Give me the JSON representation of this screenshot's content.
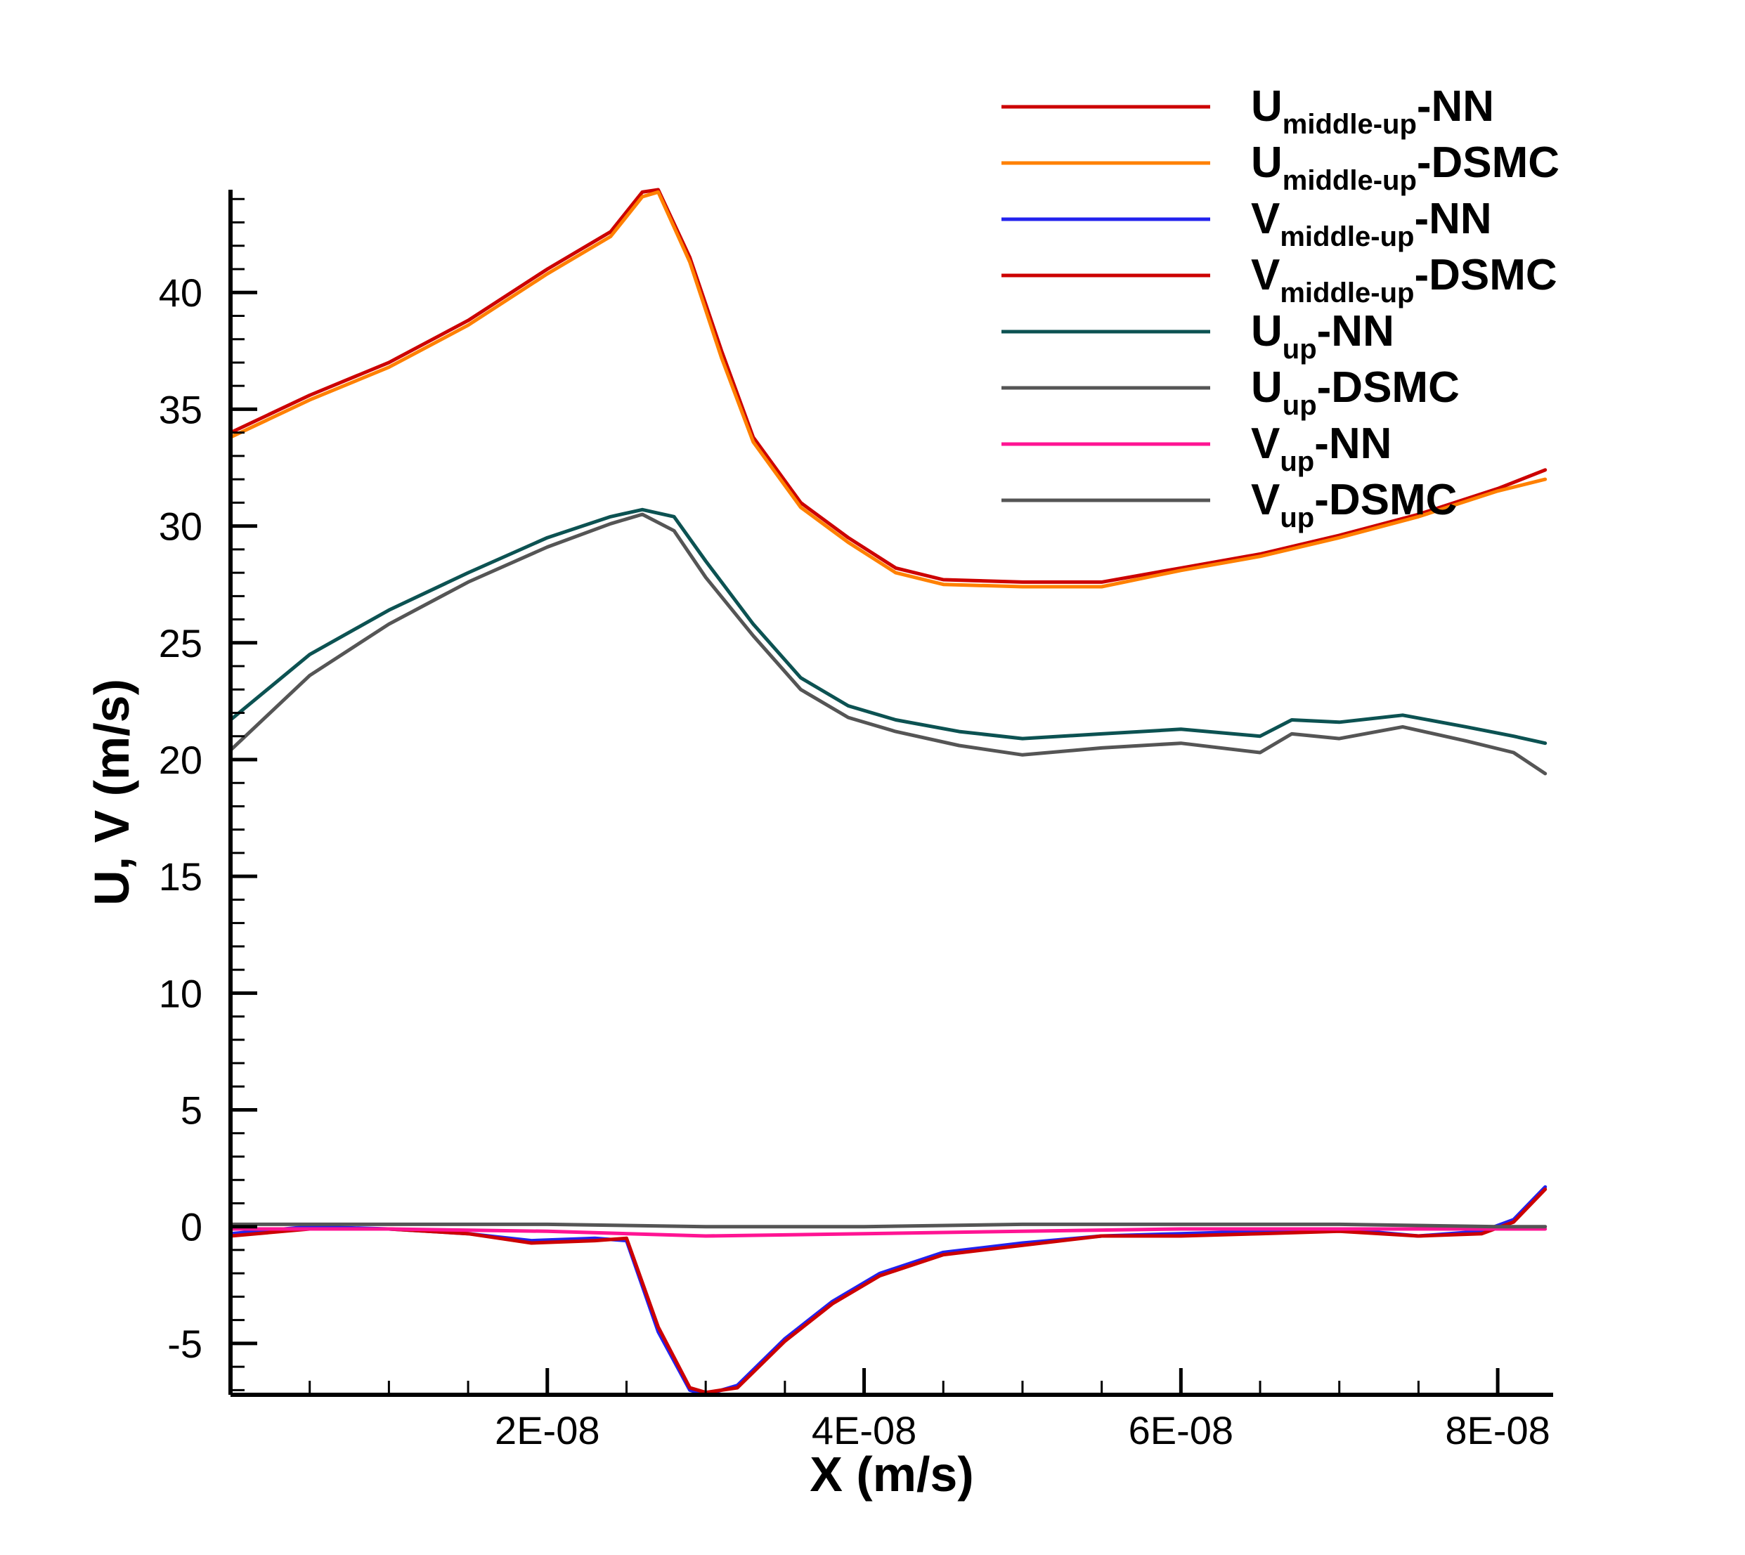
{
  "chart_data": {
    "type": "line",
    "title": "",
    "xlabel": "X (m/s)",
    "ylabel": "U, V (m/s)",
    "xlim": [
      0,
      8.35e-08
    ],
    "ylim": [
      -7.2,
      44.4
    ],
    "x_ticks": [
      {
        "value": 2e-08,
        "label": "2E-08"
      },
      {
        "value": 4e-08,
        "label": "4E-08"
      },
      {
        "value": 6e-08,
        "label": "6E-08"
      },
      {
        "value": 8e-08,
        "label": "8E-08"
      }
    ],
    "y_ticks": [
      {
        "value": -5,
        "label": "-5"
      },
      {
        "value": 0,
        "label": "0"
      },
      {
        "value": 5,
        "label": "5"
      },
      {
        "value": 10,
        "label": "10"
      },
      {
        "value": 15,
        "label": "15"
      },
      {
        "value": 20,
        "label": "20"
      },
      {
        "value": 25,
        "label": "25"
      },
      {
        "value": 30,
        "label": "30"
      },
      {
        "value": 35,
        "label": "35"
      },
      {
        "value": 40,
        "label": "40"
      }
    ],
    "grid": false,
    "legend_position": "top-right",
    "series": [
      {
        "name": "U_middle-up-NN",
        "legend_main": "U",
        "legend_sub": "middle-up",
        "legend_suffix": "-NN",
        "color": "#cc0000",
        "x": [
          0,
          5e-09,
          1e-08,
          1.5e-08,
          2e-08,
          2.4e-08,
          2.6e-08,
          2.7e-08,
          2.9e-08,
          3.1e-08,
          3.3e-08,
          3.6e-08,
          3.9e-08,
          4.2e-08,
          4.5e-08,
          5e-08,
          5.5e-08,
          6e-08,
          6.5e-08,
          7e-08,
          7.5e-08,
          8e-08,
          8.3e-08
        ],
        "values": [
          34,
          35.6,
          37,
          38.8,
          41,
          42.6,
          44.3,
          44.4,
          41.5,
          37.5,
          33.8,
          31.0,
          29.5,
          28.2,
          27.7,
          27.6,
          27.6,
          28.2,
          28.8,
          29.6,
          30.5,
          31.6,
          32.4
        ]
      },
      {
        "name": "U_middle-up-DSMC",
        "legend_main": "U",
        "legend_sub": "middle-up",
        "legend_suffix": "-DSMC",
        "color": "#ff8000",
        "x": [
          0,
          5e-09,
          1e-08,
          1.5e-08,
          2e-08,
          2.4e-08,
          2.6e-08,
          2.7e-08,
          2.9e-08,
          3.1e-08,
          3.3e-08,
          3.6e-08,
          3.9e-08,
          4.2e-08,
          4.5e-08,
          5e-08,
          5.5e-08,
          6e-08,
          6.5e-08,
          7e-08,
          7.5e-08,
          8e-08,
          8.3e-08
        ],
        "values": [
          33.8,
          35.4,
          36.8,
          38.6,
          40.8,
          42.4,
          44.1,
          44.3,
          41.3,
          37.2,
          33.6,
          30.8,
          29.3,
          28.0,
          27.5,
          27.4,
          27.4,
          28.1,
          28.7,
          29.5,
          30.4,
          31.5,
          32.0
        ]
      },
      {
        "name": "V_middle-up-NN",
        "legend_main": "V",
        "legend_sub": "middle-up",
        "legend_suffix": "-NN",
        "color": "#2222ee",
        "x": [
          0,
          5e-09,
          1e-08,
          1.5e-08,
          1.9e-08,
          2.3e-08,
          2.5e-08,
          2.7e-08,
          2.9e-08,
          3e-08,
          3.2e-08,
          3.5e-08,
          3.8e-08,
          4.1e-08,
          4.5e-08,
          5e-08,
          5.5e-08,
          6e-08,
          6.5e-08,
          7e-08,
          7.5e-08,
          7.9e-08,
          8.1e-08,
          8.3e-08
        ],
        "values": [
          -0.3,
          0,
          -0.1,
          -0.3,
          -0.6,
          -0.5,
          -0.6,
          -4.5,
          -7.0,
          -7.2,
          -6.8,
          -4.8,
          -3.2,
          -2.0,
          -1.1,
          -0.7,
          -0.4,
          -0.3,
          -0.2,
          -0.1,
          -0.4,
          -0.2,
          0.3,
          1.7
        ]
      },
      {
        "name": "V_middle-up-DSMC",
        "legend_main": "V",
        "legend_sub": "middle-up",
        "legend_suffix": "-DSMC",
        "color": "#cc0000",
        "x": [
          0,
          5e-09,
          1e-08,
          1.5e-08,
          1.9e-08,
          2.3e-08,
          2.5e-08,
          2.7e-08,
          2.9e-08,
          3e-08,
          3.2e-08,
          3.5e-08,
          3.8e-08,
          4.1e-08,
          4.5e-08,
          5e-08,
          5.5e-08,
          6e-08,
          6.5e-08,
          7e-08,
          7.5e-08,
          7.9e-08,
          8.1e-08,
          8.3e-08
        ],
        "values": [
          -0.4,
          -0.1,
          -0.1,
          -0.3,
          -0.7,
          -0.6,
          -0.5,
          -4.3,
          -6.9,
          -7.1,
          -6.9,
          -4.9,
          -3.3,
          -2.1,
          -1.2,
          -0.8,
          -0.4,
          -0.4,
          -0.3,
          -0.2,
          -0.4,
          -0.3,
          0.2,
          1.6
        ]
      },
      {
        "name": "U_up-NN",
        "legend_main": "U",
        "legend_sub": "up",
        "legend_suffix": "-NN",
        "color": "#0c5252",
        "x": [
          0,
          5e-09,
          1e-08,
          1.5e-08,
          2e-08,
          2.4e-08,
          2.6e-08,
          2.8e-08,
          3e-08,
          3.3e-08,
          3.6e-08,
          3.9e-08,
          4.2e-08,
          4.6e-08,
          5e-08,
          5.5e-08,
          6e-08,
          6.5e-08,
          6.7e-08,
          7e-08,
          7.4e-08,
          7.8e-08,
          8.1e-08,
          8.3e-08
        ],
        "values": [
          21.7,
          24.5,
          26.4,
          28.0,
          29.5,
          30.4,
          30.7,
          30.4,
          28.5,
          25.8,
          23.5,
          22.3,
          21.7,
          21.2,
          20.9,
          21.1,
          21.3,
          21.0,
          21.7,
          21.6,
          21.9,
          21.4,
          21.0,
          20.7
        ]
      },
      {
        "name": "U_up-DSMC",
        "legend_main": "U",
        "legend_sub": "up",
        "legend_suffix": "-DSMC",
        "color": "#555555",
        "x": [
          0,
          5e-09,
          1e-08,
          1.5e-08,
          2e-08,
          2.4e-08,
          2.6e-08,
          2.8e-08,
          3e-08,
          3.3e-08,
          3.6e-08,
          3.9e-08,
          4.2e-08,
          4.6e-08,
          5e-08,
          5.5e-08,
          6e-08,
          6.5e-08,
          6.7e-08,
          7e-08,
          7.4e-08,
          7.8e-08,
          8.1e-08,
          8.3e-08
        ],
        "values": [
          20.4,
          23.6,
          25.8,
          27.6,
          29.1,
          30.1,
          30.5,
          29.8,
          27.8,
          25.3,
          23.0,
          21.8,
          21.2,
          20.6,
          20.2,
          20.5,
          20.7,
          20.3,
          21.1,
          20.9,
          21.4,
          20.8,
          20.3,
          19.4
        ]
      },
      {
        "name": "V_up-NN",
        "legend_main": "V",
        "legend_sub": "up",
        "legend_suffix": "-NN",
        "color": "#ff1493",
        "x": [
          0,
          1e-08,
          2e-08,
          3e-08,
          4e-08,
          5e-08,
          6e-08,
          7e-08,
          8e-08,
          8.3e-08
        ],
        "values": [
          -0.1,
          -0.1,
          -0.2,
          -0.4,
          -0.3,
          -0.2,
          -0.1,
          -0.1,
          -0.1,
          -0.1
        ]
      },
      {
        "name": "V_up-DSMC",
        "legend_main": "V",
        "legend_sub": "up",
        "legend_suffix": "-DSMC",
        "color": "#555555",
        "x": [
          0,
          1e-08,
          2e-08,
          3e-08,
          4e-08,
          5e-08,
          6e-08,
          7e-08,
          8e-08,
          8.3e-08
        ],
        "values": [
          0.1,
          0.1,
          0.1,
          0.0,
          0.0,
          0.1,
          0.1,
          0.1,
          0.0,
          0.0
        ]
      }
    ]
  }
}
